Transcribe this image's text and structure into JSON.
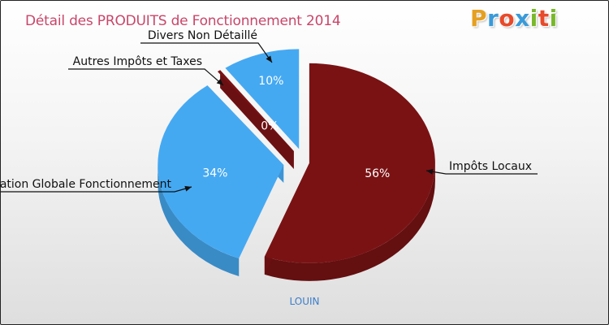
{
  "title": "Détail des PRODUITS de Fonctionnement 2014",
  "logo": {
    "letters": [
      "P",
      "r",
      "o",
      "x",
      "i",
      "t",
      "i"
    ],
    "colors": [
      "#e6a020",
      "#3a9ad9",
      "#e84a2a",
      "#3a9ad9",
      "#78b82a",
      "#e84a2a",
      "#78b82a"
    ]
  },
  "commune": "LOUIN",
  "colors": {
    "dark_red": "#7a1214",
    "light_blue": "#45a9f2"
  },
  "chart_data": {
    "type": "pie",
    "title": "Détail des PRODUITS de Fonctionnement 2014",
    "slices": [
      {
        "label": "Impôts Locaux",
        "value": 56,
        "pct_label": "56%",
        "color": "#7a1214"
      },
      {
        "label": "Dotation Globale Fonctionnement",
        "value": 34,
        "pct_label": "34%",
        "color": "#45a9f2"
      },
      {
        "label": "Autres Impôts et Taxes",
        "value": 0.4,
        "pct_label": "0%",
        "color": "#7a1214"
      },
      {
        "label": "Divers Non Détaillé",
        "value": 10,
        "pct_label": "10%",
        "color": "#45a9f2"
      }
    ]
  }
}
